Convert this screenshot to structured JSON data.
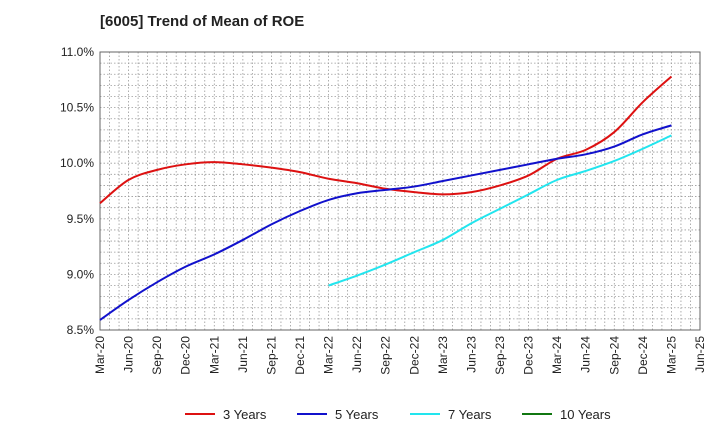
{
  "chart_data": {
    "type": "line",
    "title": "[6005]  Trend of Mean of ROE",
    "xlabel": "",
    "ylabel": "",
    "ylim": [
      8.5,
      11.0
    ],
    "y_ticks": [
      "11.0%",
      "10.5%",
      "10.0%",
      "9.5%",
      "9.0%",
      "8.5%"
    ],
    "y_tick_values": [
      11.0,
      10.5,
      10.0,
      9.5,
      9.0,
      8.5
    ],
    "categories": [
      "Mar-20",
      "Jun-20",
      "Sep-20",
      "Dec-20",
      "Mar-21",
      "Jun-21",
      "Sep-21",
      "Dec-21",
      "Mar-22",
      "Jun-22",
      "Sep-22",
      "Dec-22",
      "Mar-23",
      "Jun-23",
      "Sep-23",
      "Dec-23",
      "Mar-24",
      "Jun-24",
      "Sep-24",
      "Dec-24",
      "Mar-25",
      "Jun-25"
    ],
    "grid": true,
    "legend_position": "bottom",
    "series": [
      {
        "name": "3 Years",
        "color": "#dd1111",
        "values": [
          9.64,
          9.85,
          9.94,
          9.99,
          10.01,
          9.99,
          9.96,
          9.92,
          9.86,
          9.82,
          9.77,
          9.74,
          9.72,
          9.74,
          9.8,
          9.89,
          10.04,
          10.12,
          10.28,
          10.55,
          10.78,
          null
        ]
      },
      {
        "name": "5 Years",
        "color": "#1111cc",
        "values": [
          8.59,
          8.77,
          8.93,
          9.07,
          9.18,
          9.31,
          9.45,
          9.57,
          9.67,
          9.73,
          9.76,
          9.79,
          9.84,
          9.89,
          9.94,
          9.99,
          10.04,
          10.08,
          10.15,
          10.26,
          10.34,
          null
        ]
      },
      {
        "name": "7 Years",
        "color": "#22e5ee",
        "values": [
          null,
          null,
          null,
          null,
          null,
          null,
          null,
          null,
          8.9,
          8.99,
          9.09,
          9.2,
          9.31,
          9.46,
          9.59,
          9.72,
          9.85,
          9.93,
          10.02,
          10.13,
          10.25,
          null
        ]
      },
      {
        "name": "10 Years",
        "color": "#117711",
        "values": [
          null,
          null,
          null,
          null,
          null,
          null,
          null,
          null,
          null,
          null,
          null,
          null,
          null,
          null,
          null,
          null,
          null,
          null,
          null,
          null,
          null,
          null
        ]
      }
    ]
  }
}
